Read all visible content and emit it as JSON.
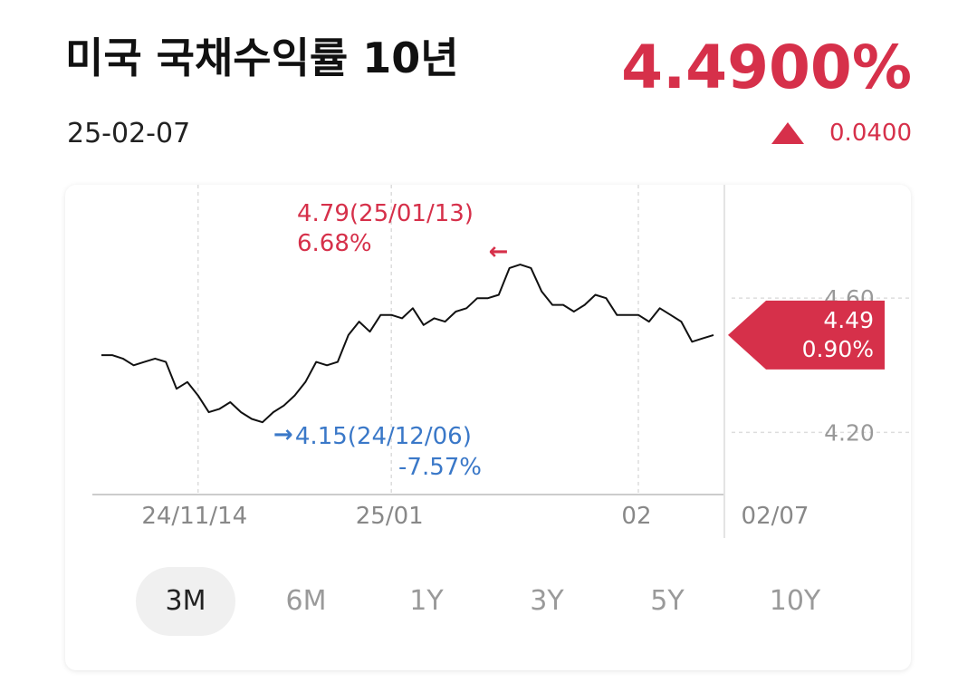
{
  "header": {
    "title": "미국 국채수익률 10년",
    "date": "25-02-07",
    "price": "4.4900%",
    "change": "0.0400",
    "change_direction": "up"
  },
  "colors": {
    "up": "#d6304a",
    "down": "#3a78c8",
    "line": "#111111",
    "grid": "#dddddd"
  },
  "chart_data": {
    "type": "line",
    "series": [
      {
        "values": [
          4.43,
          4.43,
          4.42,
          4.4,
          4.41,
          4.42,
          4.41,
          4.33,
          4.35,
          4.31,
          4.26,
          4.27,
          4.29,
          4.26,
          4.24,
          4.23,
          4.26,
          4.28,
          4.31,
          4.35,
          4.41,
          4.4,
          4.41,
          4.49,
          4.53,
          4.5,
          4.55,
          4.55,
          4.54,
          4.57,
          4.52,
          4.54,
          4.53,
          4.56,
          4.57,
          4.6,
          4.6,
          4.61,
          4.69,
          4.7,
          4.69,
          4.62,
          4.58,
          4.58,
          4.56,
          4.58,
          4.61,
          4.6,
          4.55,
          4.55,
          4.55,
          4.53,
          4.57,
          4.55,
          4.53,
          4.47,
          4.48,
          4.49
        ]
      }
    ],
    "y_ticks": [
      {
        "value": 4.6,
        "label": "4.60"
      },
      {
        "value": 4.2,
        "label": "4.20"
      }
    ],
    "x_ticks": [
      {
        "index": 9,
        "label": "24/11/14"
      },
      {
        "index": 27,
        "label": "25/01"
      },
      {
        "index": 50,
        "label": "02"
      }
    ],
    "end_label": "02/07",
    "ylim": [
      4.02,
      4.83
    ],
    "max_marker": {
      "index": 40,
      "value": "4.79(25/01/13)",
      "pct": "6.68%",
      "arrow": "←"
    },
    "min_marker": {
      "index": 15,
      "value": "4.15(24/12/06)",
      "pct": "-7.57%",
      "arrow": "→"
    },
    "current_marker": {
      "value": "4.49",
      "pct": "0.90%"
    }
  },
  "periods": [
    {
      "label": "3M",
      "active": true
    },
    {
      "label": "6M",
      "active": false
    },
    {
      "label": "1Y",
      "active": false
    },
    {
      "label": "3Y",
      "active": false
    },
    {
      "label": "5Y",
      "active": false
    },
    {
      "label": "10Y",
      "active": false
    }
  ]
}
